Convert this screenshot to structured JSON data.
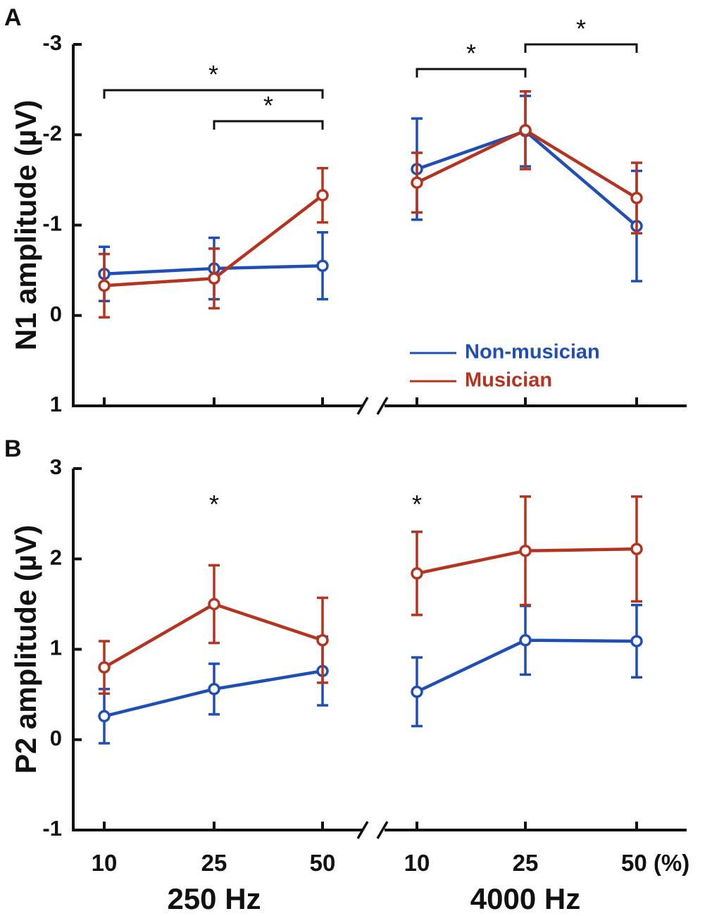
{
  "chart_data": [
    {
      "type": "line",
      "panel_label": "A",
      "ylabel": "N1 amplitude (µV)",
      "ylim": [
        1,
        -3
      ],
      "y_inverted": true,
      "yticks": [
        -3,
        -2,
        -1,
        0,
        1
      ],
      "ytick_labels": [
        "-3",
        "-2",
        "-1",
        "0",
        "1"
      ],
      "groups": [
        {
          "name": "250 Hz",
          "categories": [
            "10",
            "25",
            "50"
          ]
        },
        {
          "name": "4000 Hz",
          "categories": [
            "10",
            "25",
            "50"
          ]
        }
      ],
      "series": [
        {
          "name": "Non-musician",
          "color": "#1f4fb5",
          "values": [
            [
              -0.46,
              -0.52,
              -0.55
            ],
            [
              -1.62,
              -2.04,
              -0.99
            ]
          ],
          "errors": [
            [
              0.3,
              0.34,
              0.37
            ],
            [
              0.56,
              0.39,
              0.61
            ]
          ]
        },
        {
          "name": "Musician",
          "color": "#b5341f",
          "values": [
            [
              -0.33,
              -0.41,
              -1.33
            ],
            [
              -1.47,
              -2.05,
              -1.3
            ]
          ],
          "errors": [
            [
              0.35,
              0.33,
              0.3
            ],
            [
              0.33,
              0.43,
              0.39
            ]
          ]
        }
      ],
      "significance": [
        {
          "label": "*",
          "from": [
            0,
            0
          ],
          "to": [
            0,
            2
          ]
        },
        {
          "label": "*",
          "from": [
            0,
            1
          ],
          "to": [
            0,
            2
          ]
        },
        {
          "label": "*",
          "from": [
            1,
            0
          ],
          "to": [
            1,
            1
          ]
        },
        {
          "label": "*",
          "from": [
            1,
            1
          ],
          "to": [
            1,
            2
          ]
        }
      ],
      "legend": [
        {
          "name": "Non-musician",
          "color": "#1f4fb5"
        },
        {
          "name": "Musician",
          "color": "#b5341f"
        }
      ],
      "legend_position": "lower-right"
    },
    {
      "type": "line",
      "panel_label": "B",
      "ylabel": "P2 amplitude (µV)",
      "ylim": [
        -1,
        3
      ],
      "yticks": [
        -1,
        0,
        1,
        2,
        3
      ],
      "ytick_labels": [
        "-1",
        "0",
        "1",
        "2",
        "3"
      ],
      "groups": [
        {
          "name": "250 Hz",
          "categories": [
            "10",
            "25",
            "50"
          ]
        },
        {
          "name": "4000 Hz",
          "categories": [
            "10",
            "25",
            "50"
          ]
        }
      ],
      "series": [
        {
          "name": "Non-musician",
          "color": "#1f4fb5",
          "values": [
            [
              0.26,
              0.56,
              0.76
            ],
            [
              0.53,
              1.1,
              1.09
            ]
          ],
          "errors": [
            [
              0.3,
              0.28,
              0.38
            ],
            [
              0.38,
              0.38,
              0.4
            ]
          ]
        },
        {
          "name": "Musician",
          "color": "#b5341f",
          "values": [
            [
              0.8,
              1.5,
              1.1
            ],
            [
              1.84,
              2.09,
              2.11
            ]
          ],
          "errors": [
            [
              0.29,
              0.43,
              0.47
            ],
            [
              0.46,
              0.6,
              0.58
            ]
          ]
        }
      ],
      "significance_marks": [
        {
          "label": "*",
          "at": [
            0,
            1
          ]
        },
        {
          "label": "*",
          "at": [
            1,
            0
          ]
        }
      ],
      "xtick_labels": [
        "10",
        "25",
        "50",
        "10",
        "25",
        "50 (%)"
      ],
      "xgroup_labels": [
        "250 Hz",
        "4000 Hz"
      ]
    }
  ]
}
